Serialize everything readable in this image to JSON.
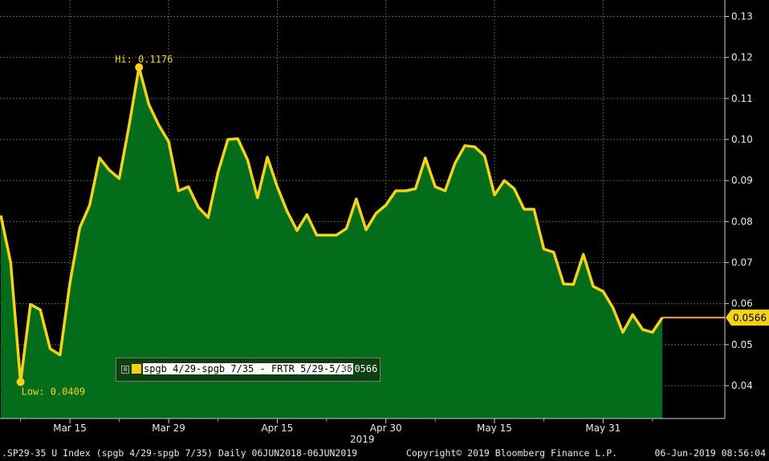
{
  "chart_data": {
    "type": "area",
    "series": [
      {
        "name": "spgb 4/29-spgb 7/35 - FRTR 5/29-5/36",
        "values": [
          0.0815,
          0.07,
          0.0409,
          0.0598,
          0.0585,
          0.049,
          0.0475,
          0.065,
          0.0785,
          0.084,
          0.0955,
          0.0925,
          0.0905,
          0.1035,
          0.1176,
          0.1085,
          0.1035,
          0.0995,
          0.0875,
          0.0885,
          0.0835,
          0.081,
          0.092,
          0.1,
          0.1002,
          0.095,
          0.0858,
          0.0957,
          0.0885,
          0.0825,
          0.0778,
          0.0817,
          0.0767,
          0.0767,
          0.0767,
          0.0783,
          0.0855,
          0.078,
          0.082,
          0.084,
          0.0875,
          0.0875,
          0.088,
          0.0955,
          0.0885,
          0.0875,
          0.0942,
          0.0985,
          0.0982,
          0.096,
          0.0865,
          0.09,
          0.088,
          0.083,
          0.083,
          0.0733,
          0.0725,
          0.0648,
          0.0647,
          0.072,
          0.0642,
          0.063,
          0.059,
          0.053,
          0.0573,
          0.0537,
          0.053,
          0.0566,
          0.0566,
          0.0566
        ]
      }
    ],
    "x_ticks": [
      {
        "label": "Mar 15",
        "index": 7
      },
      {
        "label": "Mar 29",
        "index": 17
      },
      {
        "label": "Apr 15",
        "index": 28
      },
      {
        "label": "Apr 30",
        "index": 39
      },
      {
        "label": "May 15",
        "index": 50
      },
      {
        "label": "May 31",
        "index": 61
      }
    ],
    "x_minor_ticks": [
      2,
      12,
      22,
      33,
      44,
      55,
      66
    ],
    "xlabel": "2019",
    "ylim": [
      0.032,
      0.134
    ],
    "y_ticks": [
      0.04,
      0.05,
      0.06,
      0.07,
      0.08,
      0.09,
      0.1,
      0.11,
      0.12,
      0.13
    ],
    "y_tick_labels": [
      "0.04",
      "0.05",
      "0.06",
      "0.07",
      "0.08",
      "0.09",
      "0.10",
      "0.11",
      "0.12",
      "0.13"
    ],
    "last_data_index": 67,
    "annotations": {
      "high": {
        "label": "Hi: 0.1176",
        "index": 14,
        "value": 0.1176
      },
      "low": {
        "label": "Low: 0.0409",
        "index": 2,
        "value": 0.0409
      },
      "last": {
        "label": "0.0566",
        "value": 0.0566
      }
    },
    "grid": true,
    "fill_color": "#036d1c",
    "line_color": "#f2d21b",
    "last_line_color": "#f7a23c"
  },
  "legend": {
    "expand_glyph": "⊞",
    "series_name": "spgb 4/29-spgb 7/35 - FRTR 5/29-5/36",
    "series_value": "0.0566"
  },
  "footer": {
    "left": ".SP29-35 U Index (spgb 4/29-spgb 7/35)  Daily 06JUN2018-06JUN2019",
    "center": "Copyright© 2019 Bloomberg Finance L.P.",
    "right": "06-Jun-2019 08:56:04"
  }
}
